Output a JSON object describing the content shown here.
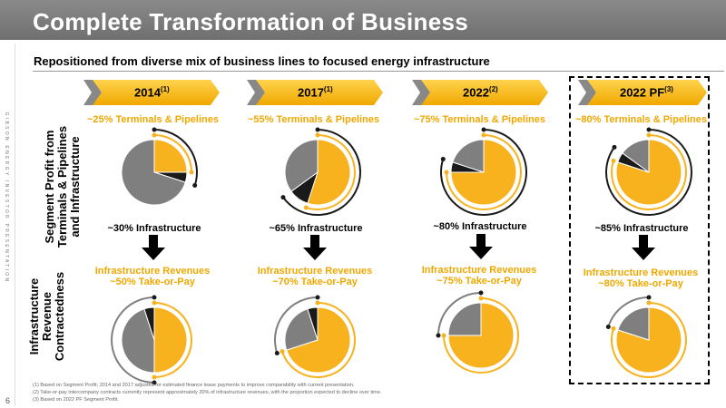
{
  "title": "Complete Transformation of Business",
  "side_text": "GIBSON ENERGY INVESTOR PRESENTATION",
  "subtitle": "Repositioned from diverse mix of business lines to focused energy infrastructure",
  "row_labels": {
    "top": "Segment Profit from Terminals & Pipelines and Infrastructure",
    "bottom": "Infrastructure Revenue Contractedness"
  },
  "columns": [
    {
      "year": "2014",
      "sup": "(1)",
      "top_pct_label": "~25% Terminals & Pipelines",
      "infra_label": "~30% Infrastructure",
      "rev_label": "Infrastructure Revenues",
      "take_label": "~50% Take-or-Pay"
    },
    {
      "year": "2017",
      "sup": "(1)",
      "top_pct_label": "~55% Terminals & Pipelines",
      "infra_label": "~65% Infrastructure",
      "rev_label": "Infrastructure Revenues",
      "take_label": "~70% Take-or-Pay"
    },
    {
      "year": "2022",
      "sup": "(2)",
      "top_pct_label": "~75% Terminals & Pipelines",
      "infra_label": "~80% Infrastructure",
      "rev_label": "Infrastructure Revenues",
      "take_label": "~75% Take-or-Pay"
    },
    {
      "year": "2022 PF",
      "sup": "(3)",
      "top_pct_label": "~80% Terminals & Pipelines",
      "infra_label": "~85% Infrastructure",
      "rev_label": "Infrastructure Revenues",
      "take_label": "~80% Take-or-Pay"
    }
  ],
  "pies": {
    "top": [
      {
        "tp": 25,
        "other_infra": 5
      },
      {
        "tp": 55,
        "other_infra": 10
      },
      {
        "tp": 75,
        "other_infra": 5
      },
      {
        "tp": 80,
        "other_infra": 5
      }
    ],
    "bottom": [
      {
        "take_or_pay": 50,
        "dark": 5
      },
      {
        "take_or_pay": 70,
        "dark": 5
      },
      {
        "take_or_pay": 75,
        "dark": 0
      },
      {
        "take_or_pay": 80,
        "dark": 0
      }
    ]
  },
  "colors": {
    "orange": "#f7b21e",
    "gray": "#7f7f7f",
    "dark": "#1a1a1a",
    "title_bg": "#7a7a7a"
  },
  "footnotes": [
    "(1) Based on Segment Profit; 2014 and 2017 adjusted for estimated finance lease payments to improve comparability with current presentation.",
    "(2) Take-or-pay intercompany contracts currently represent approximately 20% of infrastructure revenues, with the proportion expected to decline over time.",
    "(3) Based on 2022 PF Segment Profit."
  ],
  "page_number": "6"
}
